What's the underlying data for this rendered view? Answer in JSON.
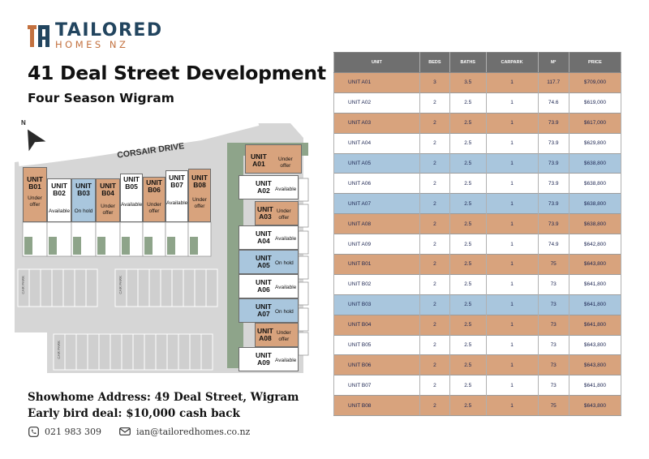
{
  "logo": {
    "line1": "TAILORED",
    "line2": "HOMES NZ",
    "brand_primary": "#22455f",
    "brand_accent": "#c3713f"
  },
  "title": "41 Deal Street Development",
  "subtitle": "Four Season Wigram",
  "plan": {
    "street": "CORSAIR DRIVE",
    "north": "N",
    "carpark_label": "CAR PARK",
    "units": [
      {
        "name": "UNIT\nB01",
        "status": "Under\noffer",
        "color": "orange"
      },
      {
        "name": "UNIT\nB02",
        "status": "Available",
        "color": "white"
      },
      {
        "name": "UNIT\nB03",
        "status": "On hold",
        "color": "blue"
      },
      {
        "name": "UNIT\nB04",
        "status": "Under\noffer",
        "color": "orange"
      },
      {
        "name": "UNIT\nB05",
        "status": "Available",
        "color": "white"
      },
      {
        "name": "UNIT\nB06",
        "status": "Under\noffer",
        "color": "orange"
      },
      {
        "name": "UNIT\nB07",
        "status": "Available",
        "color": "white"
      },
      {
        "name": "UNIT\nB08",
        "status": "Under\noffer",
        "color": "orange"
      },
      {
        "name": "UNIT\nA01",
        "status": "Under\noffer",
        "color": "orange"
      },
      {
        "name": "UNIT\nA02",
        "status": "Available",
        "color": "white"
      },
      {
        "name": "UNIT\nA03",
        "status": "Under\noffer",
        "color": "orange"
      },
      {
        "name": "UNIT\nA04",
        "status": "Available",
        "color": "white"
      },
      {
        "name": "UNIT\nA05",
        "status": "On hold",
        "color": "blue"
      },
      {
        "name": "UNIT\nA06",
        "status": "Available",
        "color": "white"
      },
      {
        "name": "UNIT\nA07",
        "status": "On hold",
        "color": "blue"
      },
      {
        "name": "UNIT\nA08",
        "status": "Under\noffer",
        "color": "orange"
      },
      {
        "name": "UNIT\nA09",
        "status": "Available",
        "color": "white"
      }
    ],
    "colors": {
      "orange": "#d8a37d",
      "blue": "#a9c6dd",
      "green": "#8ea48a",
      "road": "#d3d3d3"
    }
  },
  "footer": {
    "address": "Showhome Address: 49 Deal Street, Wigram",
    "deal": "Early bird deal: $10,000 cash back",
    "phone": "021 983 309",
    "email": "ian@tailoredhomes.co.nz",
    "phone_icon": "phone-icon",
    "email_icon": "email-icon"
  },
  "table": {
    "headers": [
      "UNIT",
      "BEDS",
      "BATHS",
      "CARPARK",
      "M²",
      "PRICE"
    ],
    "rows": [
      {
        "unit": "UNIT A01",
        "beds": "3",
        "baths": "3.5",
        "carpark": "1",
        "m2": "117.7",
        "price": "$709,000",
        "color": "orange"
      },
      {
        "unit": "UNIT A02",
        "beds": "2",
        "baths": "2.5",
        "carpark": "1",
        "m2": "74.6",
        "price": "$619,000",
        "color": "white"
      },
      {
        "unit": "UNIT A03",
        "beds": "2",
        "baths": "2.5",
        "carpark": "1",
        "m2": "73.9",
        "price": "$617,000",
        "color": "orange"
      },
      {
        "unit": "UNIT A04",
        "beds": "2",
        "baths": "2.5",
        "carpark": "1",
        "m2": "73.9",
        "price": "$629,800",
        "color": "white"
      },
      {
        "unit": "UNIT A05",
        "beds": "2",
        "baths": "2.5",
        "carpark": "1",
        "m2": "73.9",
        "price": "$638,800",
        "color": "blue"
      },
      {
        "unit": "UNIT A06",
        "beds": "2",
        "baths": "2.5",
        "carpark": "1",
        "m2": "73.9",
        "price": "$638,800",
        "color": "white"
      },
      {
        "unit": "UNIT A07",
        "beds": "2",
        "baths": "2.5",
        "carpark": "1",
        "m2": "73.9",
        "price": "$638,800",
        "color": "blue"
      },
      {
        "unit": "UNIT A08",
        "beds": "2",
        "baths": "2.5",
        "carpark": "1",
        "m2": "73.9",
        "price": "$638,800",
        "color": "orange"
      },
      {
        "unit": "UNIT A09",
        "beds": "2",
        "baths": "2.5",
        "carpark": "1",
        "m2": "74.9",
        "price": "$642,800",
        "color": "white"
      },
      {
        "unit": "UNIT B01",
        "beds": "2",
        "baths": "2.5",
        "carpark": "1",
        "m2": "75",
        "price": "$643,800",
        "color": "orange"
      },
      {
        "unit": "UNIT B02",
        "beds": "2",
        "baths": "2.5",
        "carpark": "1",
        "m2": "73",
        "price": "$641,800",
        "color": "white"
      },
      {
        "unit": "UNIT B03",
        "beds": "2",
        "baths": "2.5",
        "carpark": "1",
        "m2": "73",
        "price": "$641,800",
        "color": "blue"
      },
      {
        "unit": "UNIT B04",
        "beds": "2",
        "baths": "2.5",
        "carpark": "1",
        "m2": "73",
        "price": "$641,800",
        "color": "orange"
      },
      {
        "unit": "UNIT B05",
        "beds": "2",
        "baths": "2.5",
        "carpark": "1",
        "m2": "73",
        "price": "$643,800",
        "color": "white"
      },
      {
        "unit": "UNIT B06",
        "beds": "2",
        "baths": "2.5",
        "carpark": "1",
        "m2": "73",
        "price": "$643,800",
        "color": "orange"
      },
      {
        "unit": "UNIT B07",
        "beds": "2",
        "baths": "2.5",
        "carpark": "1",
        "m2": "73",
        "price": "$641,800",
        "color": "white"
      },
      {
        "unit": "UNIT B08",
        "beds": "2",
        "baths": "2.5",
        "carpark": "1",
        "m2": "75",
        "price": "$643,800",
        "color": "orange"
      }
    ]
  }
}
